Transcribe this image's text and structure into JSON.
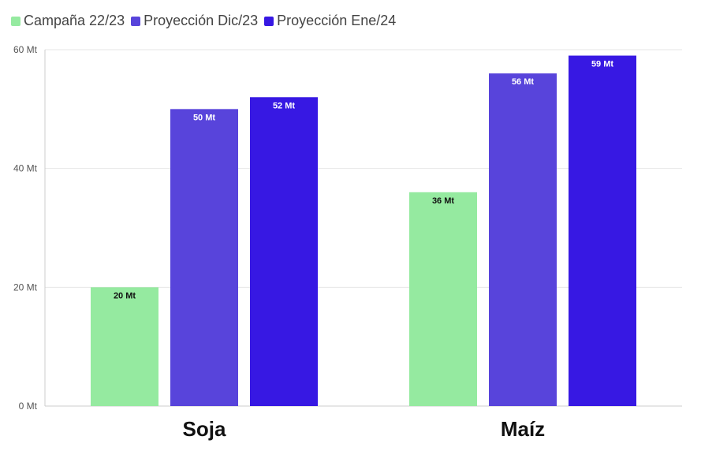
{
  "colors": {
    "campana": "#95eaa0",
    "dic": "#5844db",
    "ene": "#3718e3",
    "grid": "#e6e6e6",
    "axis": "#cccccc"
  },
  "chart_data": {
    "type": "bar",
    "categories": [
      "Soja",
      "Maíz"
    ],
    "series": [
      {
        "name": "Campaña 22/23",
        "values": [
          20,
          36
        ],
        "labels": [
          "20 Mt",
          "36 Mt"
        ],
        "color_key": "campana",
        "label_color": "#111111"
      },
      {
        "name": "Proyección Dic/23",
        "values": [
          50,
          56
        ],
        "labels": [
          "50 Mt",
          "56 Mt"
        ],
        "color_key": "dic",
        "label_color": "#ffffff"
      },
      {
        "name": "Proyección Ene/24",
        "values": [
          52,
          59
        ],
        "labels": [
          "52 Mt",
          "59 Mt"
        ],
        "color_key": "ene",
        "label_color": "#ffffff"
      }
    ],
    "ylim": [
      0,
      60
    ],
    "yticks": [
      0,
      20,
      40,
      60
    ],
    "ytick_labels": [
      "0 Mt",
      "20 Mt",
      "40 Mt",
      "60 Mt"
    ],
    "grid": true,
    "legend_position": "top-left",
    "title": "",
    "xlabel": "",
    "ylabel": ""
  }
}
